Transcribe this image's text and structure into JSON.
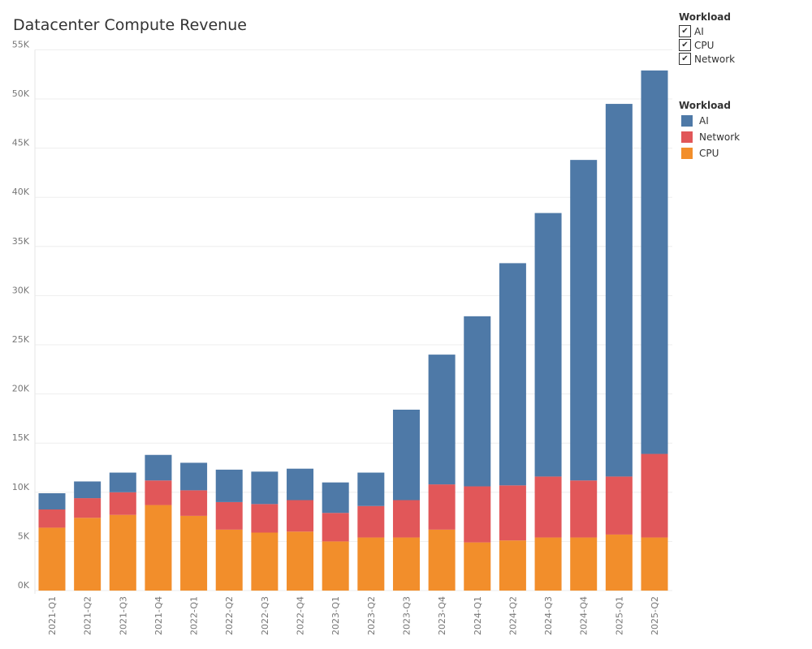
{
  "chart_data": {
    "type": "bar",
    "stacked": true,
    "title": "Datacenter Compute Revenue",
    "xlabel": "",
    "ylabel": "",
    "ylim": [
      0,
      55000
    ],
    "yticks": [
      0,
      5000,
      10000,
      15000,
      20000,
      25000,
      30000,
      35000,
      40000,
      45000,
      50000,
      55000
    ],
    "ytick_labels": [
      "0K",
      "5K",
      "10K",
      "15K",
      "20K",
      "25K",
      "30K",
      "35K",
      "40K",
      "45K",
      "50K",
      "55K"
    ],
    "categories": [
      "2021-Q1",
      "2021-Q2",
      "2021-Q3",
      "2021-Q4",
      "2022-Q1",
      "2022-Q2",
      "2022-Q3",
      "2022-Q4",
      "2023-Q1",
      "2023-Q2",
      "2023-Q3",
      "2023-Q4",
      "2024-Q1",
      "2024-Q2",
      "2024-Q3",
      "2024-Q4",
      "2025-Q1",
      "2025-Q2"
    ],
    "series": [
      {
        "name": "CPU",
        "color": "#f28e2b",
        "values": [
          6400,
          7400,
          7700,
          8700,
          7600,
          6200,
          5900,
          6000,
          5000,
          5400,
          5400,
          6200,
          4900,
          5100,
          5400,
          5400,
          5700,
          5400
        ]
      },
      {
        "name": "Network",
        "color": "#e15759",
        "values": [
          1850,
          2000,
          2300,
          2500,
          2600,
          2800,
          2900,
          3200,
          2900,
          3200,
          3800,
          4600,
          5700,
          5600,
          6200,
          5800,
          5900,
          8500
        ]
      },
      {
        "name": "AI",
        "color": "#4e79a7",
        "values": [
          1650,
          1700,
          2000,
          2600,
          2800,
          3300,
          3300,
          3200,
          3100,
          3400,
          9200,
          13200,
          17300,
          22600,
          26800,
          32600,
          37900,
          39000
        ]
      }
    ],
    "grid": true,
    "legend_placement": "top-right"
  },
  "filter": {
    "title": "Workload",
    "items": [
      "AI",
      "CPU",
      "Network"
    ]
  },
  "legend": {
    "title": "Workload",
    "items": [
      {
        "label": "AI",
        "color": "#4e79a7"
      },
      {
        "label": "Network",
        "color": "#e15759"
      },
      {
        "label": "CPU",
        "color": "#f28e2b"
      }
    ]
  }
}
